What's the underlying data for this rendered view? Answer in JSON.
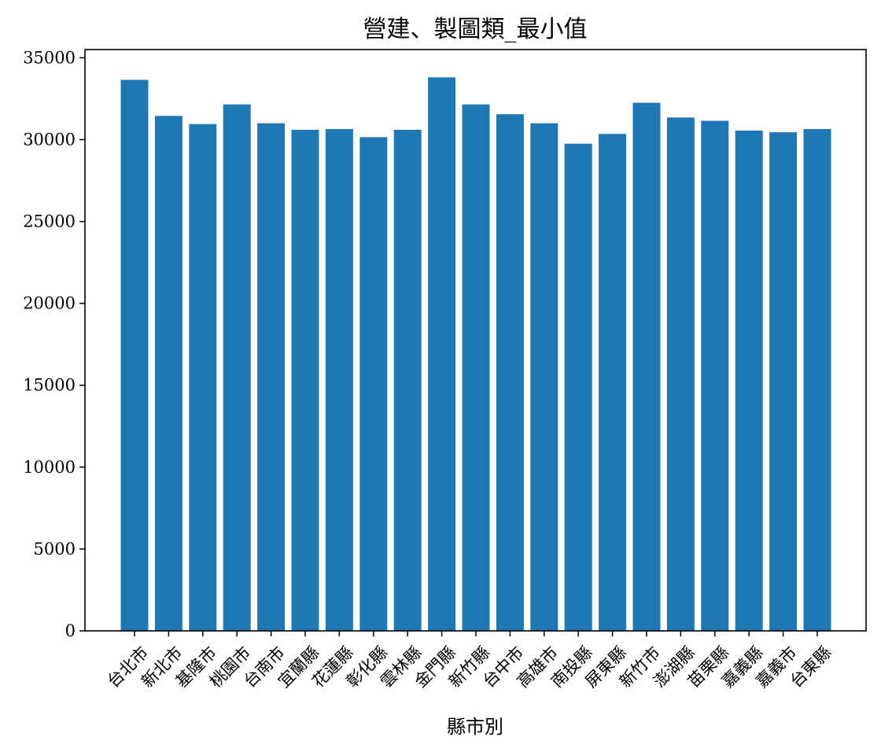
{
  "chart_data": {
    "type": "bar",
    "title": "營建、製圖類_最小值",
    "xlabel": "縣市別",
    "ylabel": "",
    "ylim": [
      0,
      35500
    ],
    "yticks": [
      0,
      5000,
      10000,
      15000,
      20000,
      25000,
      30000,
      35000
    ],
    "bar_color": "#1f77b4",
    "grid": false,
    "legend": "none",
    "categories": [
      "台北市",
      "新北市",
      "基隆市",
      "桃園市",
      "台南市",
      "宜蘭縣",
      "花蓮縣",
      "彰化縣",
      "雲林縣",
      "金門縣",
      "新竹縣",
      "台中市",
      "高雄市",
      "南投縣",
      "屏東縣",
      "新竹市",
      "澎湖縣",
      "苗栗縣",
      "嘉義縣",
      "嘉義市",
      "台東縣"
    ],
    "values": [
      33650,
      31450,
      30950,
      32150,
      31000,
      30600,
      30650,
      30150,
      30600,
      33800,
      32150,
      31550,
      31000,
      29750,
      30350,
      32250,
      31350,
      31150,
      30550,
      30450,
      30650
    ]
  }
}
